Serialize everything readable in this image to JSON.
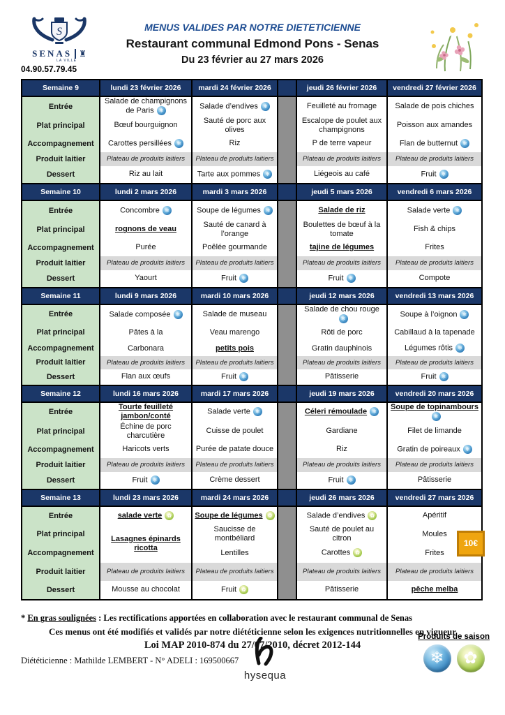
{
  "header": {
    "phone": "04.90.57.79.45",
    "title1": "MENUS VALIDES PAR NOTRE DIETETICIENNE",
    "title2": "Restaurant communal Edmond Pons - Senas",
    "title3": "Du 23 février au 27 mars 2026",
    "logo": {
      "name": "SENAS",
      "subname": "LA VILLE"
    }
  },
  "colors": {
    "navy": "#1b3768",
    "title_blue": "#1f4e93",
    "label_green": "#cbe3c8",
    "gap_gray": "#8f8f8f",
    "dairy_gray": "#d9d9d9",
    "badge_orange": "#efa50f",
    "snow_blue": "#2f7cb8",
    "season_green": "#6f9c2d"
  },
  "icons": {
    "snowflake_glyph": "❄",
    "flower_glyph": "✿"
  },
  "row_labels": [
    "Entrée",
    "Plat principal",
    "Accompagnement",
    "Produit laitier",
    "Dessert"
  ],
  "dairy_text": "Plateau de produits laitiers",
  "weeks": [
    {
      "name": "Semaine 9",
      "days": [
        {
          "date": "lundi 23 février 2026",
          "cells": [
            {
              "t": "Salade de champignons de Paris",
              "i": "snow"
            },
            {
              "t": "Bœuf bourguignon"
            },
            {
              "t": "Carottes persillées",
              "i": "snow"
            },
            {
              "d": true
            },
            {
              "t": "Riz au lait"
            }
          ]
        },
        {
          "date": "mardi 24 février 2026",
          "cells": [
            {
              "t": "Salade d’endives",
              "i": "snow"
            },
            {
              "t": "Sauté de porc aux olives"
            },
            {
              "t": "Riz"
            },
            {
              "d": true
            },
            {
              "t": "Tarte aux pommes",
              "i": "snow"
            }
          ]
        },
        {
          "date": "jeudi 26 février 2026",
          "cells": [
            {
              "t": "Feuilleté au fromage"
            },
            {
              "t": "Escalope de poulet aux champignons"
            },
            {
              "t": "P de terre vapeur"
            },
            {
              "d": true
            },
            {
              "t": "Liégeois au café"
            }
          ]
        },
        {
          "date": "vendredi 27 février 2026",
          "cells": [
            {
              "t": "Salade de pois chiches"
            },
            {
              "t": "Poisson aux amandes"
            },
            {
              "t": "Flan de butternut",
              "i": "snow"
            },
            {
              "d": true
            },
            {
              "t": "Fruit",
              "i": "snow"
            }
          ]
        }
      ]
    },
    {
      "name": "Semaine 10",
      "days": [
        {
          "date": "lundi 2 mars 2026",
          "cells": [
            {
              "t": "Concombre",
              "i": "snow"
            },
            {
              "t": "rognons de veau",
              "u": true
            },
            {
              "t": "Purée"
            },
            {
              "d": true
            },
            {
              "t": "Yaourt"
            }
          ]
        },
        {
          "date": "mardi 3 mars 2026",
          "cells": [
            {
              "t": "Soupe de légumes",
              "i": "snow"
            },
            {
              "t": "Sauté de canard à l’orange"
            },
            {
              "t": "Poêlée gourmande"
            },
            {
              "d": true
            },
            {
              "t": "Fruit",
              "i": "snow"
            }
          ]
        },
        {
          "date": "jeudi 5 mars 2026",
          "cells": [
            {
              "t": "Salade de riz",
              "u": true
            },
            {
              "t": "Boulettes de bœuf à la tomate"
            },
            {
              "t": "tajine de légumes",
              "u": true
            },
            {
              "d": true
            },
            {
              "t": "Fruit",
              "i": "snow"
            }
          ]
        },
        {
          "date": "vendredi 6 mars 2026",
          "cells": [
            {
              "t": "Salade verte",
              "i": "snow"
            },
            {
              "t": "Fish & chips"
            },
            {
              "t": "Frites"
            },
            {
              "d": true
            },
            {
              "t": "Compote"
            }
          ]
        }
      ]
    },
    {
      "name": "Semaine 11",
      "days": [
        {
          "date": "lundi 9 mars 2026",
          "cells": [
            {
              "t": "Salade composée",
              "i": "snow"
            },
            {
              "t": "Pâtes à la"
            },
            {
              "t": "Carbonara"
            },
            {
              "d": true
            },
            {
              "t": "Flan aux œufs"
            }
          ]
        },
        {
          "date": "mardi 10 mars 2026",
          "cells": [
            {
              "t": "Salade de museau"
            },
            {
              "t": "Veau marengo"
            },
            {
              "t": "petits pois",
              "u": true
            },
            {
              "d": true
            },
            {
              "t": "Fruit",
              "i": "snow"
            }
          ]
        },
        {
          "date": "jeudi 12 mars 2026",
          "cells": [
            {
              "t": "Salade de chou rouge",
              "i": "snow"
            },
            {
              "t": "Rôti de porc"
            },
            {
              "t": "Gratin dauphinois"
            },
            {
              "d": true
            },
            {
              "t": "Pâtisserie"
            }
          ]
        },
        {
          "date": "vendredi 13 mars 2026",
          "cells": [
            {
              "t": "Soupe à l’oignon",
              "i": "snow"
            },
            {
              "t": "Cabillaud à la tapenade"
            },
            {
              "t": "Légumes rôtis",
              "i": "snow"
            },
            {
              "d": true
            },
            {
              "t": "Fruit",
              "i": "snow"
            }
          ]
        }
      ]
    },
    {
      "name": "Semaine 12",
      "days": [
        {
          "date": "lundi 16 mars 2026",
          "cells": [
            {
              "t": "Tourte feuilleté jambon/conté",
              "u": true
            },
            {
              "t": "Échine de porc charcutière"
            },
            {
              "t": "Haricots verts"
            },
            {
              "d": true
            },
            {
              "t": "Fruit",
              "i": "snow"
            }
          ]
        },
        {
          "date": "mardi 17 mars 2026",
          "cells": [
            {
              "t": "Salade verte",
              "i": "snow"
            },
            {
              "t": "Cuisse de poulet"
            },
            {
              "t": "Purée de patate douce"
            },
            {
              "d": true
            },
            {
              "t": "Crème dessert"
            }
          ]
        },
        {
          "date": "jeudi 19 mars 2026",
          "cells": [
            {
              "t": "Céleri rémoulade",
              "u": true,
              "i": "snow"
            },
            {
              "t": "Gardiane"
            },
            {
              "t": "Riz"
            },
            {
              "d": true
            },
            {
              "t": "Fruit",
              "i": "snow"
            }
          ]
        },
        {
          "date": "vendredi 20 mars 2026",
          "cells": [
            {
              "t": "Soupe de topinambours",
              "u": true,
              "i": "snow"
            },
            {
              "t": "Filet de limande"
            },
            {
              "t": "Gratin de poireaux",
              "i": "snow"
            },
            {
              "d": true
            },
            {
              "t": "Pâtisserie"
            }
          ]
        }
      ]
    },
    {
      "name": "Semaine 13",
      "badge": "10€",
      "days": [
        {
          "date": "lundi 23 mars 2026",
          "cells": [
            {
              "t": "salade verte",
              "u": true,
              "i": "season"
            },
            {
              "t": "Lasagnes épinards ricotta",
              "u": true,
              "rs": 2
            },
            {
              "skip": true
            },
            {
              "d": true
            },
            {
              "t": "Mousse au chocolat"
            }
          ]
        },
        {
          "date": "mardi 24 mars 2026",
          "cells": [
            {
              "t": "Soupe de légumes",
              "u": true,
              "i": "season"
            },
            {
              "t": "Saucisse de montbéliard"
            },
            {
              "t": "Lentilles"
            },
            {
              "d": true
            },
            {
              "t": "Fruit",
              "i": "season"
            }
          ]
        },
        {
          "date": "jeudi 26 mars 2026",
          "cells": [
            {
              "t": "Salade d’endives",
              "i": "season"
            },
            {
              "t": "Sauté de poulet au citron"
            },
            {
              "t": "Carottes",
              "i": "season"
            },
            {
              "d": true
            },
            {
              "t": "Pâtisserie"
            }
          ]
        },
        {
          "date": "vendredi 27 mars 2026",
          "cells": [
            {
              "t": "Apéritif"
            },
            {
              "t": "Moules"
            },
            {
              "t": "Frites"
            },
            {
              "d": true
            },
            {
              "t": "pêche melba",
              "u": true
            }
          ]
        }
      ]
    }
  ],
  "footer": {
    "note_prefix": "* ",
    "note_lead": "En gras soulignées",
    "note_rest": " : Les rectifications apportées en collaboration avec le restaurant communal de Senas",
    "line2": "Ces menus ont été modifiés et validés par notre diététicienne selon les exigences nutritionnelles en vigueur",
    "line3": "Loi MAP 2010-874 du 27/07/2010, décret 2012-144",
    "dietitian": "Diététicienne : Mathilde LEMBERT -  N° ADELI : 169500667",
    "season_label": "Produits de saison",
    "hysequa_label": "hysequa"
  }
}
